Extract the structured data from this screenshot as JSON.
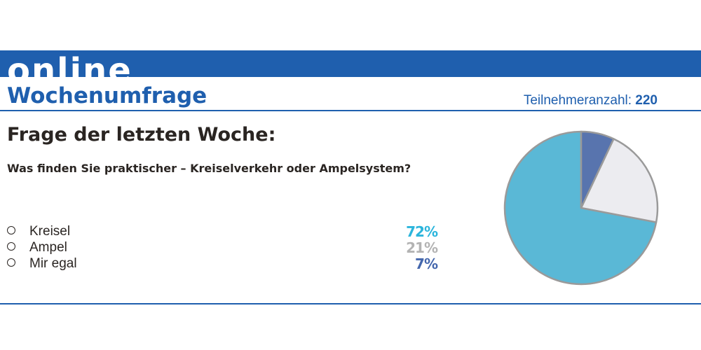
{
  "header": {
    "banner_text": "online",
    "title": "Wochenumfrage",
    "participants_label": "Teilnehmeranzahl:",
    "participants_count": "220",
    "color": "#1f5fae"
  },
  "poll": {
    "heading": "Frage der letzten Woche:",
    "question": "Was finden Sie praktischer – Kreiselverkehr oder Ampelsystem?",
    "options": [
      {
        "label": "Kreisel",
        "percent_text": "72%",
        "color": "#2bb5dc"
      },
      {
        "label": "Ampel",
        "percent_text": "21%",
        "color": "#b3b3b3"
      },
      {
        "label": "Mir egal",
        "percent_text": "7%",
        "color": "#4467ad"
      }
    ]
  },
  "chart_data": {
    "type": "pie",
    "categories": [
      "Kreisel",
      "Ampel",
      "Mir egal"
    ],
    "values": [
      72,
      21,
      7
    ],
    "colors": [
      "#5ab8d6",
      "#ececf0",
      "#5874ae"
    ],
    "start": "12 o'clock, drawn counter-clockwise",
    "outline_color": "#9a9a9a"
  }
}
